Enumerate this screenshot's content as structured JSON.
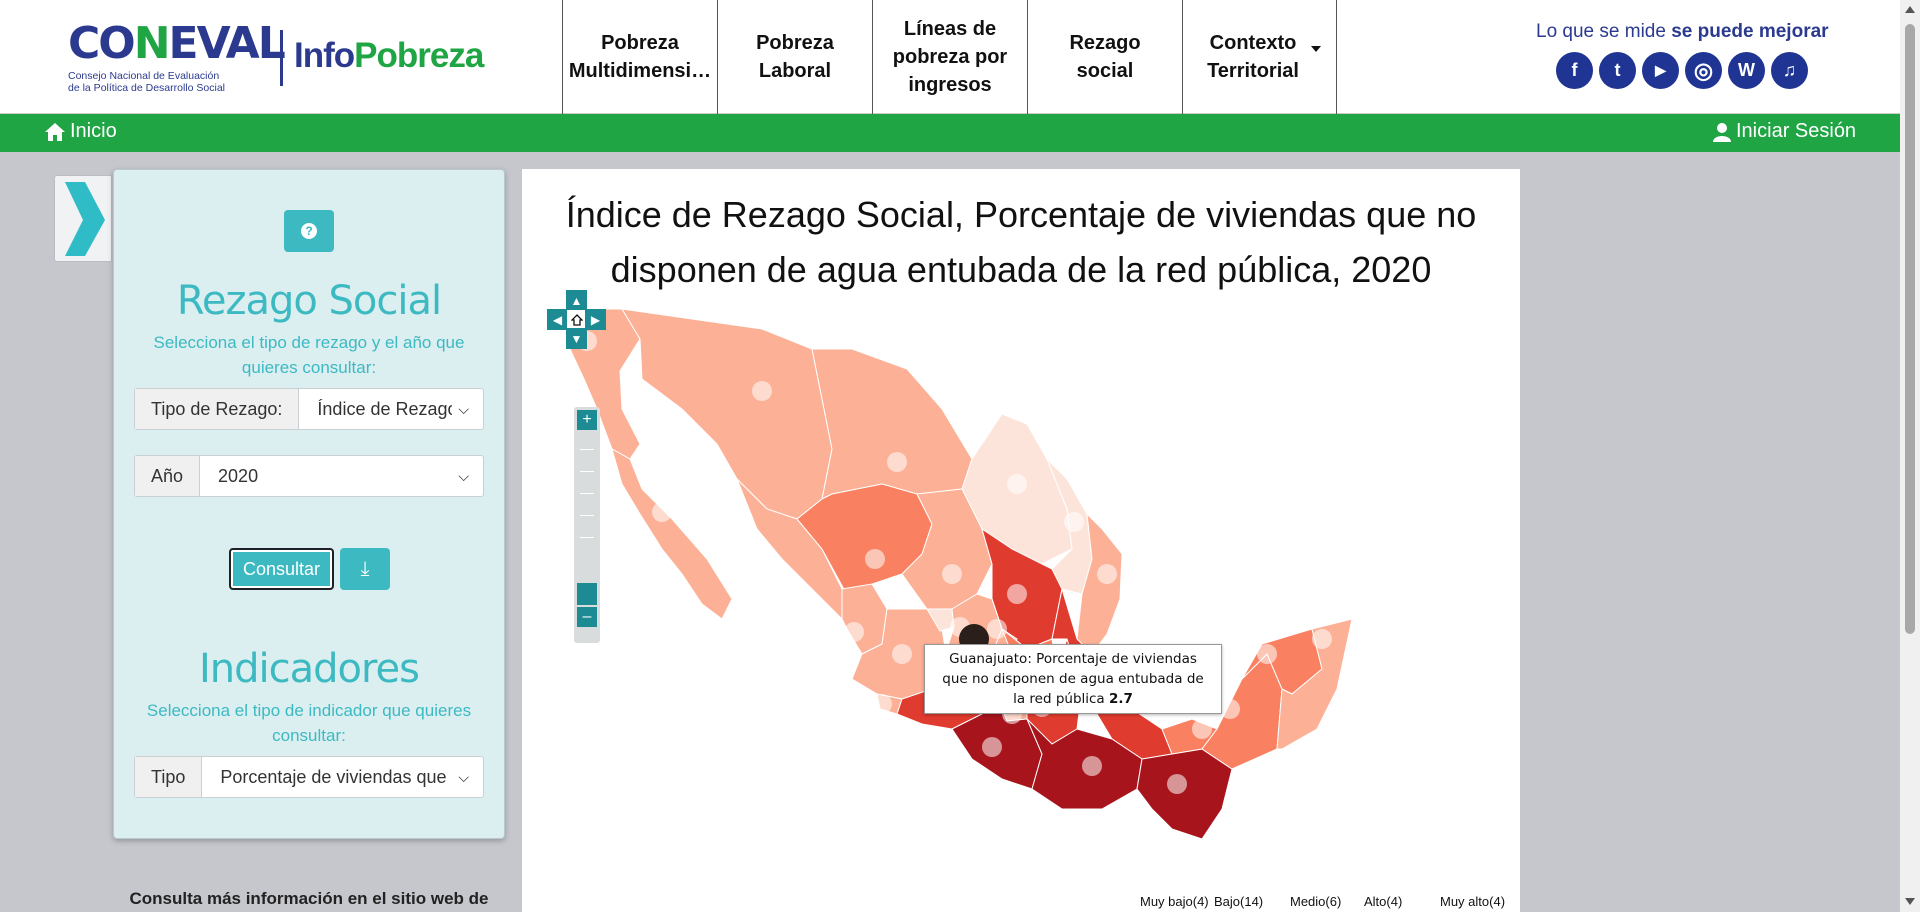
{
  "header": {
    "logo_brand_a": "CO",
    "logo_brand_b": "N",
    "logo_brand_c": "EVAL",
    "logo_subtitle_1": "Consejo Nacional de Evaluación",
    "logo_subtitle_2": "de la Política de Desarrollo Social",
    "site_name_a": "Info",
    "site_name_b": "Pobreza",
    "nav": [
      {
        "label": "Pobreza Multidimensi…"
      },
      {
        "label": "Pobreza Laboral"
      },
      {
        "label": "Líneas de pobreza por ingresos"
      },
      {
        "label": "Rezago social"
      },
      {
        "label": "Contexto Territorial"
      }
    ],
    "tagline_a": "Lo que se mide ",
    "tagline_b": "se puede mejorar",
    "social": [
      {
        "name": "facebook-icon",
        "glyph": "f"
      },
      {
        "name": "twitter-icon",
        "glyph": "t"
      },
      {
        "name": "youtube-icon",
        "glyph": "▶"
      },
      {
        "name": "instagram-icon",
        "glyph": "◎"
      },
      {
        "name": "wordpress-icon",
        "glyph": "W"
      },
      {
        "name": "podcast-icon",
        "glyph": "♫"
      }
    ]
  },
  "greenbar": {
    "home_label": "Inicio",
    "login_label": "Iniciar Sesión"
  },
  "sidepanel": {
    "help_glyph": "?",
    "rezago_title": "Rezago Social",
    "rezago_desc": "Selecciona el tipo de rezago y el año que quieres consultar:",
    "tipo_rezago_label": "Tipo de Rezago:",
    "tipo_rezago_value": "Índice de Rezago",
    "anio_label": "Año",
    "anio_value": "2020",
    "consultar_label": "Consultar",
    "download_glyph": "⤓",
    "indicadores_title": "Indicadores",
    "indicadores_desc": "Selecciona el tipo de indicador que quieres consultar:",
    "tipo_label": "Tipo",
    "tipo_value": "Porcentaje de viviendas que n",
    "more_info": "Consulta más información en el sitio web de"
  },
  "map": {
    "title": "Índice de Rezago Social, Porcentaje de viviendas que no disponen de agua entubada de la red pública, 2020",
    "tooltip_text": "Guanajuato: Porcentaje de viviendas que no disponen de agua entubada de la red pública ",
    "tooltip_value": "2.7",
    "legend": [
      "Muy bajo(4)",
      "Bajo(14)",
      "Medio(6)",
      "Alto(4)",
      "Muy alto(4)"
    ],
    "colors": {
      "muy_bajo": "#fde4da",
      "bajo": "#fcb095",
      "medio": "#f98161",
      "alto": "#e03b2f",
      "muy_alto": "#a8141b"
    }
  }
}
